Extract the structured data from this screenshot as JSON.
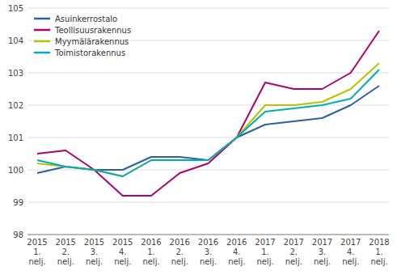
{
  "chart_data": {
    "type": "line",
    "categories": [
      "2015\n1.\nnelj.",
      "2015\n2.\nnelj.",
      "2015\n3.\nnelj.",
      "2015\n4.\nnelj.",
      "2016\n1.\nnelj.",
      "2016\n2.\nnelj.",
      "2016\n3.\nnelj.",
      "2016\n4.\nnelj.",
      "2017\n1.\nnelj.",
      "2017\n2.\nnelj.",
      "2017\n3.\nnelj.",
      "2017\n4.\nnelj.",
      "2018\n1.\nnelj."
    ],
    "series": [
      {
        "name": "Asuinkerrostalo",
        "color": "#2e5fa3",
        "values": [
          99.9,
          100.1,
          100.0,
          100.0,
          100.4,
          100.4,
          100.3,
          101.0,
          101.4,
          101.5,
          101.6,
          102.0,
          102.6
        ]
      },
      {
        "name": "Teollisuusrakennus",
        "color": "#b0006e",
        "values": [
          100.5,
          100.6,
          100.0,
          99.2,
          99.2,
          99.9,
          100.2,
          101.0,
          102.7,
          102.5,
          102.5,
          103.0,
          104.3
        ]
      },
      {
        "name": "Myymälärakennus",
        "color": "#b5c400",
        "values": [
          100.2,
          100.1,
          100.0,
          99.8,
          100.3,
          100.3,
          100.3,
          101.0,
          102.0,
          102.0,
          102.1,
          102.5,
          103.3
        ]
      },
      {
        "name": "Toimistorakennus",
        "color": "#00adb5",
        "values": [
          100.3,
          100.1,
          100.0,
          99.8,
          100.3,
          100.3,
          100.3,
          101.0,
          101.8,
          101.9,
          102.0,
          102.2,
          103.1
        ]
      }
    ],
    "ylim": [
      98,
      105
    ],
    "yticks": [
      98,
      99,
      100,
      101,
      102,
      103,
      104,
      105
    ],
    "grid": true,
    "legend": "upper left"
  }
}
